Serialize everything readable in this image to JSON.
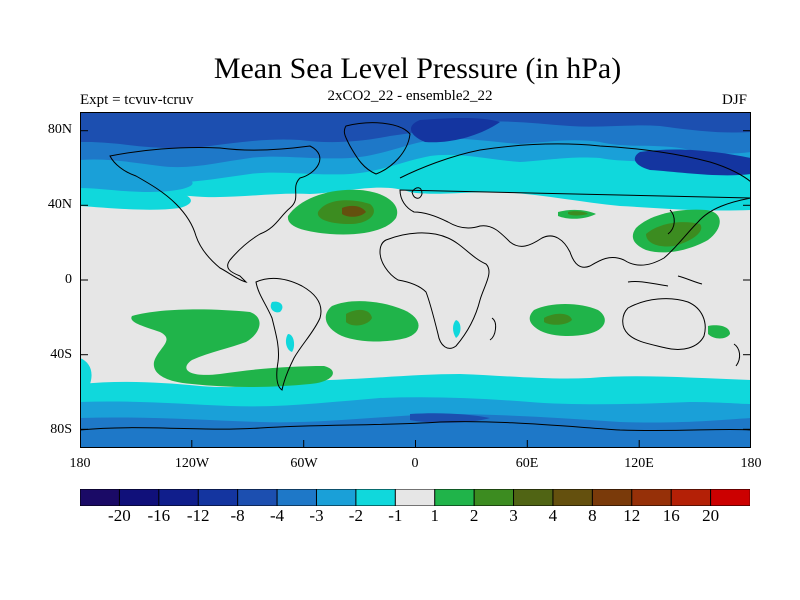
{
  "title": "Mean Sea Level Pressure (in hPa)",
  "left_label": "Expt = tcvuv-tcruv",
  "center_label": "2xCO2_22 - ensemble2_22",
  "right_label": "DJF",
  "axes": {
    "y_ticks": [
      "80N",
      "40N",
      "0",
      "40S",
      "80S"
    ],
    "x_ticks": [
      "180",
      "120W",
      "60W",
      "0",
      "60E",
      "120E",
      "180"
    ]
  },
  "map": {
    "projection": "cylindrical-equidistant",
    "lon_range": [
      -180,
      180
    ],
    "lat_range": [
      -90,
      90
    ],
    "background_level_color": "#e6e6e6"
  },
  "colorbar": {
    "colors": [
      "#1a0a66",
      "#10107a",
      "#101e8c",
      "#1435a0",
      "#1c4fb0",
      "#1e78c8",
      "#1aa0d8",
      "#10d8dc",
      "#e6e6e6",
      "#20b44a",
      "#3c8c20",
      "#506414",
      "#64500e",
      "#7a3a0a",
      "#963008",
      "#b42006",
      "#cc0000"
    ],
    "labels": [
      "-20",
      "-16",
      "-12",
      "-8",
      "-4",
      "-3",
      "-2",
      "-1",
      "1",
      "2",
      "3",
      "4",
      "8",
      "12",
      "16",
      "20"
    ]
  }
}
